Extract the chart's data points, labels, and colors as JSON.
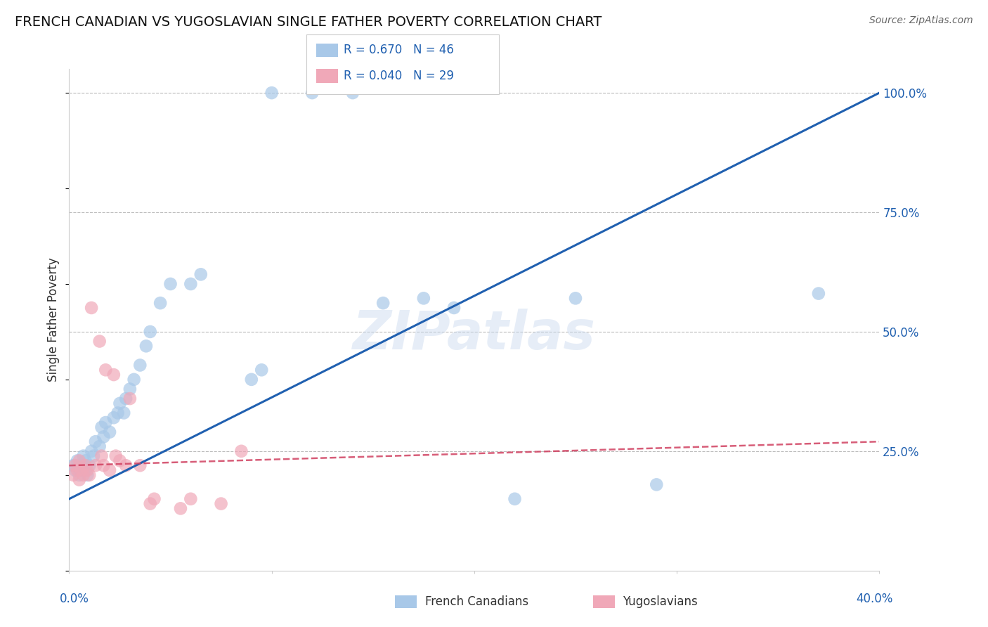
{
  "title": "FRENCH CANADIAN VS YUGOSLAVIAN SINGLE FATHER POVERTY CORRELATION CHART",
  "source": "Source: ZipAtlas.com",
  "ylabel": "Single Father Poverty",
  "legend1_r": "R = 0.670",
  "legend1_n": "N = 46",
  "legend2_r": "R = 0.040",
  "legend2_n": "N = 29",
  "legend_label1": "French Canadians",
  "legend_label2": "Yugoslavians",
  "blue_color": "#a8c8e8",
  "pink_color": "#f0a8b8",
  "blue_line_color": "#2060b0",
  "pink_line_color": "#d04060",
  "watermark": "ZIPatlas",
  "blue_scatter_x": [
    0.002,
    0.003,
    0.004,
    0.005,
    0.005,
    0.006,
    0.007,
    0.007,
    0.008,
    0.008,
    0.009,
    0.01,
    0.011,
    0.012,
    0.013,
    0.015,
    0.016,
    0.017,
    0.018,
    0.02,
    0.022,
    0.024,
    0.025,
    0.027,
    0.028,
    0.03,
    0.032,
    0.035,
    0.038,
    0.04,
    0.045,
    0.05,
    0.06,
    0.065,
    0.09,
    0.095,
    0.1,
    0.12,
    0.14,
    0.155,
    0.175,
    0.19,
    0.22,
    0.25,
    0.29,
    0.37
  ],
  "blue_scatter_y": [
    0.22,
    0.21,
    0.23,
    0.22,
    0.2,
    0.21,
    0.22,
    0.24,
    0.23,
    0.21,
    0.2,
    0.22,
    0.25,
    0.24,
    0.27,
    0.26,
    0.3,
    0.28,
    0.31,
    0.29,
    0.32,
    0.33,
    0.35,
    0.33,
    0.36,
    0.38,
    0.4,
    0.43,
    0.47,
    0.5,
    0.56,
    0.6,
    0.6,
    0.62,
    0.4,
    0.42,
    1.0,
    1.0,
    1.0,
    0.56,
    0.57,
    0.55,
    0.15,
    0.57,
    0.18,
    0.58
  ],
  "pink_scatter_x": [
    0.002,
    0.003,
    0.004,
    0.005,
    0.005,
    0.006,
    0.007,
    0.008,
    0.009,
    0.01,
    0.011,
    0.013,
    0.015,
    0.016,
    0.017,
    0.018,
    0.02,
    0.022,
    0.023,
    0.025,
    0.028,
    0.03,
    0.035,
    0.04,
    0.042,
    0.055,
    0.06,
    0.075,
    0.085
  ],
  "pink_scatter_y": [
    0.2,
    0.22,
    0.21,
    0.19,
    0.23,
    0.21,
    0.2,
    0.22,
    0.21,
    0.2,
    0.55,
    0.22,
    0.48,
    0.24,
    0.22,
    0.42,
    0.21,
    0.41,
    0.24,
    0.23,
    0.22,
    0.36,
    0.22,
    0.14,
    0.15,
    0.13,
    0.15,
    0.14,
    0.25
  ],
  "xlim": [
    0.0,
    0.4
  ],
  "ylim": [
    0.0,
    1.05
  ],
  "ytick_positions": [
    0.25,
    0.5,
    0.75,
    1.0
  ],
  "ytick_labels": [
    "25.0%",
    "50.0%",
    "75.0%",
    "100.0%"
  ],
  "xtick_show": [
    0.0,
    0.4
  ],
  "xtick_show_labels": [
    "0.0%",
    "40.0%"
  ]
}
